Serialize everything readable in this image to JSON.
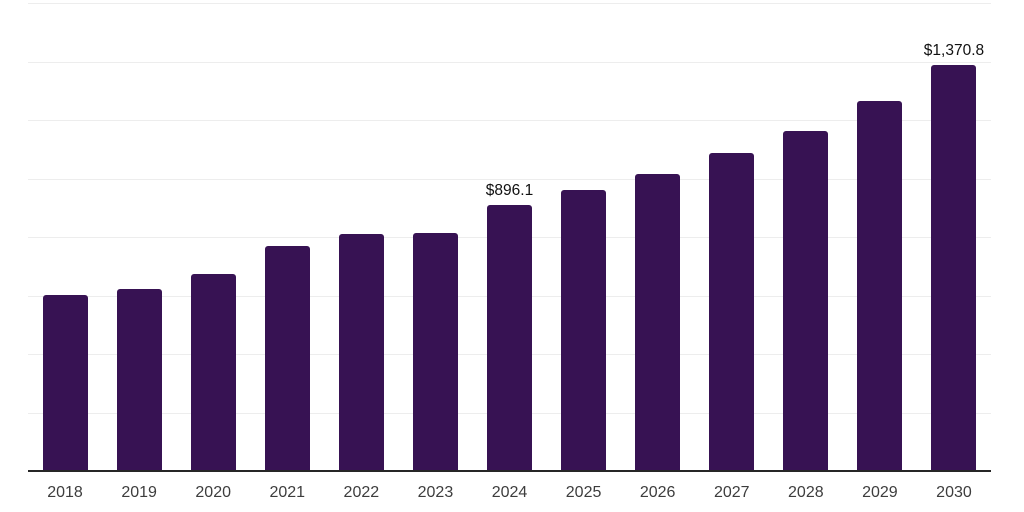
{
  "chart": {
    "bar_color": "#371253",
    "axis_line_color": "#262626",
    "gridline_color": "#ededed",
    "tick_label_color": "#3d3d3d",
    "value_label_color": "#111111",
    "background_color": "#ffffff"
  },
  "chart_data": {
    "type": "bar",
    "title": "",
    "xlabel": "",
    "ylabel": "",
    "categories": [
      "2018",
      "2019",
      "2020",
      "2021",
      "2022",
      "2023",
      "2024",
      "2025",
      "2026",
      "2027",
      "2028",
      "2029",
      "2030"
    ],
    "values": [
      594,
      613,
      664,
      758,
      798,
      804,
      896.1,
      948,
      1002,
      1074,
      1149,
      1249,
      1370.8
    ],
    "bar_labels": [
      "",
      "",
      "",
      "",
      "",
      "",
      "$896.1",
      "",
      "",
      "",
      "",
      "",
      "$1,370.8"
    ],
    "labeled_points": [
      {
        "category": "2024",
        "label": "$896.1"
      },
      {
        "category": "2030",
        "label": "$1,370.8"
      }
    ],
    "ylim": [
      0,
      1585
    ],
    "gridline_count": 8,
    "grid": "horizontal",
    "legend": "none",
    "y_axis_tick_labels_visible": false
  }
}
